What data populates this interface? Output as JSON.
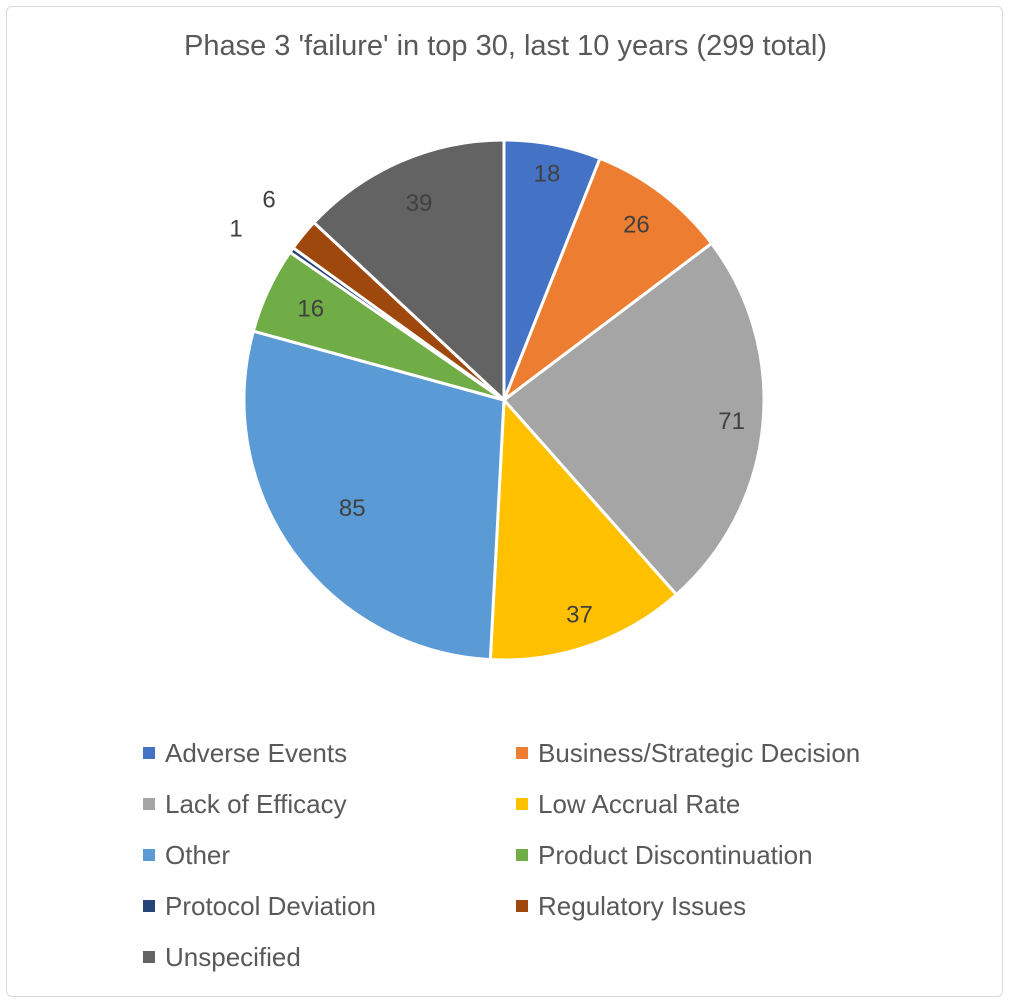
{
  "chart_data": {
    "type": "pie",
    "title": "Phase 3 'failure' in top 30, last 10 years (299 total)",
    "categories": [
      "Adverse Events",
      "Business/Strategic Decision",
      "Lack of Efficacy",
      "Low Accrual Rate",
      "Other",
      "Product Discontinuation",
      "Protocol Deviation",
      "Regulatory Issues",
      "Unspecified"
    ],
    "values": [
      18,
      26,
      71,
      37,
      85,
      16,
      1,
      6,
      39
    ],
    "colors": [
      "#4472c4",
      "#ed7d31",
      "#a5a5a5",
      "#ffc000",
      "#5b9bd5",
      "#70ad47",
      "#264478",
      "#9e480e",
      "#636363"
    ],
    "data_labels": [
      "18",
      "26",
      "71",
      "37",
      "85",
      "16",
      "1",
      "6",
      "39"
    ],
    "legend_position": "bottom",
    "start_angle_deg": 0,
    "direction": "clockwise"
  }
}
